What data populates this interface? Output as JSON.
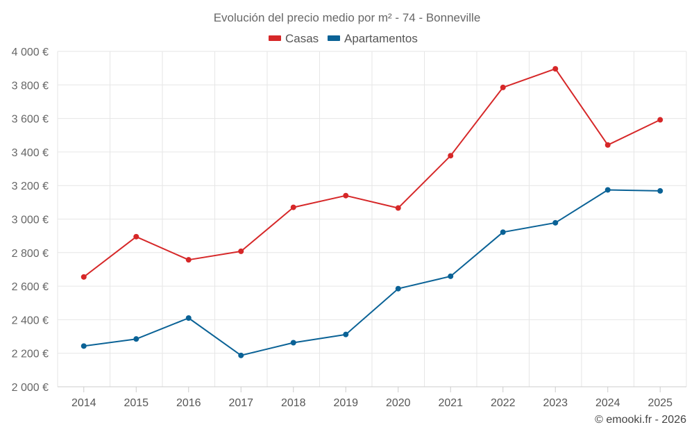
{
  "chart_data": {
    "type": "line",
    "title": "Evolución del precio medio por m² - 74 - Bonneville",
    "categories": [
      "2014",
      "2015",
      "2016",
      "2017",
      "2018",
      "2019",
      "2020",
      "2021",
      "2022",
      "2023",
      "2024",
      "2025"
    ],
    "series": [
      {
        "name": "Casas",
        "color": "#d62728",
        "values": [
          2655,
          2895,
          2757,
          2808,
          3070,
          3140,
          3066,
          3378,
          3785,
          3896,
          3442,
          3592
        ]
      },
      {
        "name": "Apartamentos",
        "color": "#0a6296",
        "values": [
          2243,
          2285,
          2410,
          2187,
          2263,
          2312,
          2585,
          2659,
          2922,
          2978,
          3174,
          3168
        ]
      }
    ],
    "ylim": [
      2000,
      4000
    ],
    "yticks": [
      2000,
      2200,
      2400,
      2600,
      2800,
      3000,
      3200,
      3400,
      3600,
      3800,
      4000
    ],
    "ytick_labels": [
      "2 000 €",
      "2 200 €",
      "2 400 €",
      "2 600 €",
      "2 800 €",
      "3 000 €",
      "3 200 €",
      "3 400 €",
      "3 600 €",
      "3 800 €",
      "4 000 €"
    ],
    "xlabel": "",
    "ylabel": "",
    "grid": true,
    "legend": "top-center"
  },
  "credit": "© emooki.fr - 2026"
}
